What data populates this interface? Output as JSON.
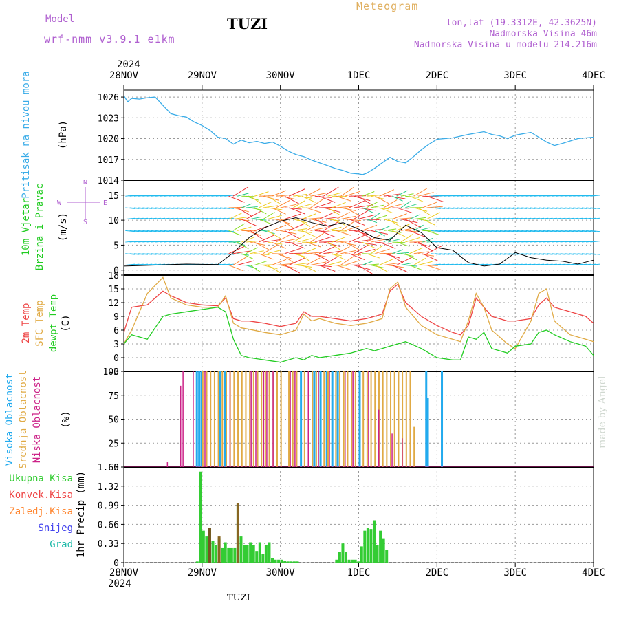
{
  "header": {
    "model_label": "Model",
    "model_version": "wrf-nmm_v3.9.1 e1km",
    "station": "TUZI",
    "title": "Meteogram",
    "coords": "lon,lat (19.3312E, 42.3625N)",
    "elevation": "Nadmorska Visina 46m",
    "model_elevation": "Nadmorska Visina u modelu 214.216m"
  },
  "footer": {
    "station": "TUZI",
    "credit": "made by Angel"
  },
  "time_axis": {
    "year": "2024",
    "labels": [
      "28NOV",
      "29NOV",
      "30NOV",
      "1DEC",
      "2DEC",
      "3DEC",
      "4DEC"
    ]
  },
  "colors": {
    "pressure": "#3aace8",
    "wind_label": "#22cc22",
    "wind_dir": "#b060d0",
    "temp2m": "#ee4444",
    "sfctemp": "#e0aa44",
    "dewpt": "#22cc22",
    "high_cloud": "#22aaee",
    "mid_cloud": "#e0aa44",
    "low_cloud": "#cc2288",
    "total_precip": "#33cc33",
    "conv_precip": "#ee4444",
    "frozen_precip": "#ff8833",
    "snow": "#4444ee",
    "graupel": "#22bbaa"
  },
  "chart_data": [
    {
      "type": "line",
      "ylabel": "Pritisak na nivou mora",
      "unit": "(hPa)",
      "yticks": [
        "1014",
        "1017",
        "1020",
        "1023",
        "1026"
      ],
      "ylim": [
        1014,
        1027
      ],
      "x": [
        0,
        0.05,
        0.1,
        0.2,
        0.3,
        0.4,
        0.5,
        0.6,
        0.7,
        0.8,
        0.9,
        1.0,
        1.1,
        1.2,
        1.3,
        1.4,
        1.5,
        1.6,
        1.7,
        1.8,
        1.9,
        2.0,
        2.1,
        2.2,
        2.3,
        2.4,
        2.5,
        2.6,
        2.7,
        2.8,
        2.9,
        3.0,
        3.05,
        3.1,
        3.2,
        3.3,
        3.4,
        3.5,
        3.6,
        3.7,
        3.8,
        3.9,
        4.0,
        4.2,
        4.4,
        4.6,
        4.7,
        4.8,
        4.9,
        5.0,
        5.2,
        5.4,
        5.5,
        5.6,
        5.8,
        6.0
      ],
      "series": [
        {
          "values": [
            1026.2,
            1025.3,
            1025.8,
            1025.7,
            1025.9,
            1026.0,
            1024.8,
            1023.6,
            1023.3,
            1023.1,
            1022.4,
            1021.9,
            1021.2,
            1020.2,
            1020.0,
            1019.2,
            1019.8,
            1019.4,
            1019.6,
            1019.3,
            1019.5,
            1018.9,
            1018.2,
            1017.7,
            1017.4,
            1016.9,
            1016.5,
            1016.1,
            1015.7,
            1015.4,
            1015.0,
            1014.9,
            1014.8,
            1015.0,
            1015.7,
            1016.5,
            1017.3,
            1016.7,
            1016.5,
            1017.4,
            1018.4,
            1019.2,
            1019.9,
            1020.1,
            1020.6,
            1021.0,
            1020.6,
            1020.4,
            1020.0,
            1020.5,
            1020.9,
            1019.5,
            1019.0,
            1019.3,
            1020.0,
            1020.2
          ]
        }
      ]
    },
    {
      "type": "line",
      "ylabel": "10m Vjetar Brzina i Pravac",
      "unit": "(m/s)",
      "yticks": [
        "0",
        "5",
        "10",
        "15"
      ],
      "ylim": [
        -1,
        18
      ],
      "direction_legend": {
        "n": "N",
        "s": "S",
        "e": "E",
        "w": "W"
      },
      "x": [
        0,
        0.4,
        0.8,
        1.2,
        1.4,
        1.6,
        1.8,
        2.0,
        2.2,
        2.4,
        2.6,
        2.8,
        3.0,
        3.2,
        3.4,
        3.6,
        3.8,
        4.0,
        4.2,
        4.4,
        4.6,
        4.8,
        5.0,
        5.2,
        5.4,
        5.6,
        5.8,
        6.0
      ],
      "series": [
        {
          "name": "speed",
          "values": [
            0.8,
            1.0,
            1.2,
            1.1,
            3.5,
            6.5,
            8.5,
            9.8,
            10.5,
            9.5,
            8.8,
            9.5,
            8.2,
            6.5,
            6.0,
            9.0,
            7.5,
            4.5,
            4.0,
            1.5,
            0.8,
            1.2,
            3.5,
            2.5,
            2.0,
            1.8,
            1.2,
            2.0
          ]
        }
      ]
    },
    {
      "type": "line",
      "unit": "(C)",
      "ylabels": [
        "2m Temp",
        "SFC Temp",
        "dewpt Temp"
      ],
      "yticks": [
        "-3",
        "0",
        "3",
        "6",
        "9",
        "12",
        "15",
        "18"
      ],
      "ylim": [
        -3,
        18
      ],
      "x": [
        0,
        0.1,
        0.3,
        0.5,
        0.6,
        0.8,
        1.0,
        1.2,
        1.3,
        1.4,
        1.5,
        1.6,
        1.8,
        2.0,
        2.2,
        2.3,
        2.4,
        2.5,
        2.7,
        2.9,
        3.1,
        3.2,
        3.3,
        3.4,
        3.5,
        3.6,
        3.8,
        4.0,
        4.2,
        4.3,
        4.4,
        4.5,
        4.6,
        4.7,
        4.9,
        5.0,
        5.2,
        5.3,
        5.4,
        5.5,
        5.7,
        5.9,
        6.0
      ],
      "series": [
        {
          "name": "2m Temp",
          "values": [
            5.5,
            11.0,
            11.5,
            14.5,
            13.5,
            12.0,
            11.5,
            11.3,
            13.0,
            8.5,
            8.0,
            8.0,
            7.5,
            6.8,
            7.5,
            10.0,
            9.0,
            9.0,
            8.5,
            8.0,
            8.5,
            9.0,
            9.5,
            14.5,
            16.0,
            12.0,
            9.0,
            7.0,
            5.5,
            5.0,
            7.0,
            13.0,
            11.0,
            9.0,
            8.0,
            8.0,
            8.5,
            11.5,
            13.0,
            11.0,
            10.0,
            9.0,
            7.5
          ]
        },
        {
          "name": "SFC Temp",
          "values": [
            3.0,
            6.0,
            14.0,
            17.5,
            13.0,
            11.5,
            11.0,
            11.0,
            13.5,
            7.5,
            6.5,
            6.2,
            5.5,
            5.0,
            6.0,
            9.5,
            8.0,
            8.5,
            7.5,
            7.0,
            7.5,
            8.0,
            8.5,
            15.0,
            16.5,
            11.0,
            7.0,
            5.0,
            4.0,
            3.5,
            8.0,
            14.0,
            11.0,
            6.0,
            3.0,
            2.0,
            8.0,
            14.0,
            15.0,
            8.0,
            5.0,
            4.0,
            3.5
          ]
        },
        {
          "name": "dewpt Temp",
          "values": [
            3.0,
            5.0,
            4.0,
            9.0,
            9.5,
            10.0,
            10.5,
            11.0,
            10.0,
            4.0,
            0.5,
            0.0,
            -0.5,
            -1.0,
            0.0,
            -0.5,
            0.5,
            0.0,
            0.5,
            1.0,
            2.0,
            1.5,
            2.0,
            2.5,
            3.0,
            3.5,
            2.0,
            0.0,
            -0.5,
            -0.5,
            4.5,
            4.0,
            5.5,
            2.0,
            1.0,
            2.5,
            3.0,
            5.5,
            6.0,
            5.0,
            3.5,
            2.5,
            0.5
          ]
        }
      ]
    },
    {
      "type": "bar",
      "unit": "(%)",
      "ylabels": [
        "Visoka Oblacnost",
        "Srednja Oblacnost",
        "Niska Oblacnost"
      ],
      "yticks": [
        "0",
        "25",
        "50",
        "75",
        "100"
      ],
      "ylim": [
        0,
        100
      ],
      "series": [
        {
          "name": "Visoka Oblacnost",
          "x": [
            0.92,
            0.95,
            0.98,
            1.22,
            1.28,
            2.25,
            2.42,
            2.5,
            2.58,
            2.65,
            2.72,
            3.0,
            3.85,
            3.87,
            4.05
          ],
          "values": [
            100,
            100,
            100,
            100,
            100,
            100,
            100,
            100,
            100,
            100,
            100,
            100,
            100,
            72,
            100
          ]
        },
        {
          "name": "Srednja Oblacnost",
          "x": [
            1.0,
            1.05,
            1.1,
            1.15,
            1.2,
            1.25,
            1.3,
            1.35,
            1.4,
            1.45,
            1.5,
            1.55,
            1.6,
            1.65,
            1.7,
            1.75,
            1.8,
            1.85,
            1.9,
            1.95,
            2.0,
            2.1,
            2.15,
            2.2,
            2.3,
            2.35,
            2.4,
            2.45,
            2.55,
            2.6,
            2.7,
            2.75,
            2.8,
            2.85,
            2.9,
            2.95,
            3.05,
            3.1,
            3.15,
            3.2,
            3.25,
            3.3,
            3.35,
            3.4,
            3.45,
            3.5,
            3.55,
            3.6,
            3.65,
            3.7
          ],
          "values": [
            100,
            100,
            100,
            100,
            100,
            100,
            100,
            100,
            100,
            100,
            100,
            100,
            100,
            100,
            100,
            100,
            100,
            100,
            100,
            100,
            100,
            100,
            100,
            100,
            100,
            100,
            100,
            100,
            100,
            100,
            100,
            100,
            100,
            100,
            100,
            100,
            100,
            100,
            100,
            100,
            100,
            100,
            100,
            100,
            100,
            100,
            100,
            100,
            100,
            42
          ]
        },
        {
          "name": "Niska Oblacnost",
          "x": [
            0.55,
            0.72,
            0.75,
            0.88,
            1.03,
            1.35,
            1.62,
            1.68,
            1.78,
            1.82,
            1.9,
            2.12,
            2.18,
            2.35,
            2.48,
            2.62,
            2.82,
            2.92,
            3.12,
            3.25,
            3.42,
            3.55,
            3.6
          ],
          "values": [
            5,
            85,
            100,
            100,
            100,
            100,
            100,
            100,
            100,
            100,
            100,
            100,
            100,
            100,
            100,
            100,
            100,
            100,
            100,
            60,
            35,
            30,
            0
          ]
        }
      ]
    },
    {
      "type": "bar",
      "unit": "(mm)",
      "ylabel": "1hr Precip",
      "legend": [
        "Ukupna Kisa",
        "Konvek.Kisa",
        "Zaledj.Kisa",
        "Snijeg",
        "Grad"
      ],
      "yticks": [
        "0",
        "0.33",
        "0.66",
        "0.99",
        "1.32",
        "1.65"
      ],
      "ylim": [
        0,
        1.65
      ],
      "x": [
        0.92,
        0.96,
        1.0,
        1.04,
        1.08,
        1.12,
        1.16,
        1.2,
        1.24,
        1.28,
        1.32,
        1.36,
        1.4,
        1.44,
        1.48,
        1.52,
        1.56,
        1.6,
        1.64,
        1.68,
        1.72,
        1.76,
        1.8,
        1.84,
        1.88,
        1.92,
        1.96,
        2.0,
        2.04,
        2.08,
        2.12,
        2.16,
        2.2,
        2.7,
        2.74,
        2.78,
        2.82,
        2.86,
        2.9,
        2.94,
        2.98,
        3.02,
        3.06,
        3.1,
        3.14,
        3.18,
        3.22,
        3.26,
        3.3,
        3.34
      ],
      "series": [
        {
          "name": "Ukupna Kisa",
          "values": [
            0.02,
            1.57,
            0.55,
            0.45,
            0.6,
            0.38,
            0.3,
            0.42,
            0.25,
            0.35,
            0.25,
            0.25,
            0.25,
            1.0,
            0.45,
            0.3,
            0.3,
            0.35,
            0.3,
            0.2,
            0.35,
            0.15,
            0.3,
            0.35,
            0.08,
            0.05,
            0.05,
            0.05,
            0.03,
            0.02,
            0.02,
            0.02,
            0.02,
            0.05,
            0.18,
            0.33,
            0.18,
            0.05,
            0.05,
            0.05,
            0.02,
            0.28,
            0.55,
            0.6,
            0.58,
            0.73,
            0.3,
            0.55,
            0.42,
            0.22
          ]
        },
        {
          "name": "Konvek.Kisa",
          "values": [
            0,
            0,
            0,
            0,
            0.6,
            0,
            0,
            0,
            0,
            0,
            0,
            0,
            0,
            0,
            0,
            0,
            0,
            0,
            0,
            0,
            0,
            0,
            0,
            0,
            0,
            0,
            0,
            0,
            0,
            0,
            0,
            0,
            0,
            0,
            0,
            0,
            0,
            0,
            0,
            0,
            0,
            0,
            0,
            0,
            0,
            0,
            0,
            0,
            0,
            0
          ]
        },
        {
          "name": "Zaledj.Kisa",
          "values": [
            0,
            0,
            0,
            0,
            0,
            0,
            0,
            0.45,
            0,
            0,
            0,
            0,
            0,
            1.03,
            0,
            0,
            0,
            0,
            0,
            0,
            0,
            0,
            0,
            0,
            0,
            0,
            0,
            0,
            0,
            0,
            0,
            0,
            0,
            0,
            0,
            0,
            0,
            0,
            0,
            0,
            0,
            0,
            0,
            0,
            0,
            0,
            0,
            0,
            0,
            0
          ]
        }
      ]
    }
  ]
}
